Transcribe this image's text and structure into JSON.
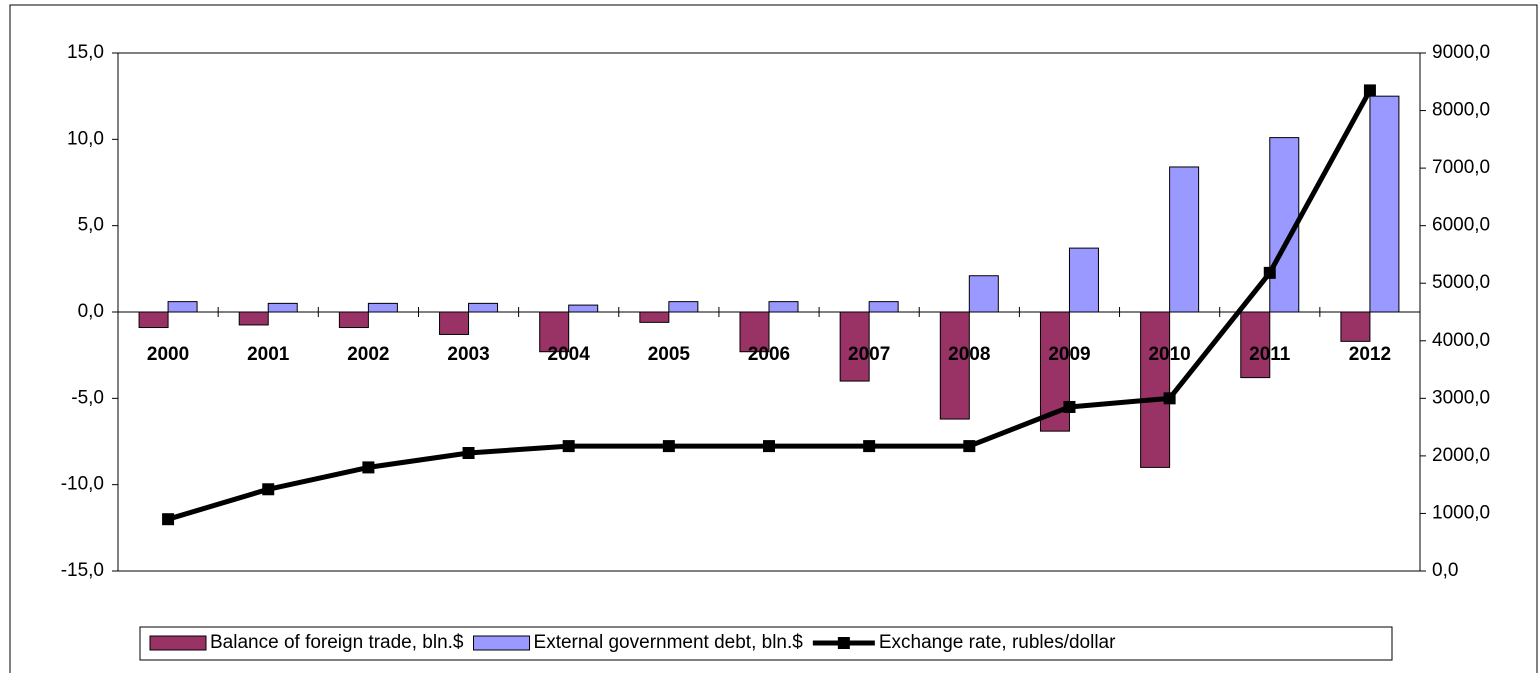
{
  "chart_data": {
    "type": "bar-line",
    "categories": [
      "2000",
      "2001",
      "2002",
      "2003",
      "2004",
      "2005",
      "2006",
      "2007",
      "2008",
      "2009",
      "2010",
      "2011",
      "2012"
    ],
    "series": [
      {
        "name": "Balance of foreign trade, bln.$",
        "type": "bar",
        "color": "#993366",
        "values": [
          -0.9,
          -0.75,
          -0.9,
          -1.3,
          -2.3,
          -0.6,
          -2.3,
          -4.0,
          -6.2,
          -6.9,
          -9.0,
          -3.8,
          -1.7
        ]
      },
      {
        "name": "External government debt, bln.$",
        "type": "bar",
        "color": "#9999ff",
        "values": [
          0.6,
          0.5,
          0.5,
          0.5,
          0.4,
          0.6,
          0.6,
          0.6,
          2.1,
          3.7,
          8.4,
          10.1,
          12.5
        ]
      },
      {
        "name": "Exchange rate, rubles/dollar",
        "type": "line",
        "color": "#000000",
        "axis": "y2",
        "values": [
          900,
          1420,
          1800,
          2050,
          2170,
          2170,
          2170,
          2170,
          2170,
          2850,
          3000,
          5180,
          8350
        ]
      }
    ],
    "ylim": [
      -15,
      15
    ],
    "yticks": [
      {
        "value": -15,
        "label": "-15,0"
      },
      {
        "value": -10,
        "label": "-10,0"
      },
      {
        "value": -5,
        "label": "-5,0"
      },
      {
        "value": 0,
        "label": "0,0"
      },
      {
        "value": 5,
        "label": "5,0"
      },
      {
        "value": 10,
        "label": "10,0"
      },
      {
        "value": 15,
        "label": "15,0"
      }
    ],
    "y2lim": [
      0,
      9000
    ],
    "y2ticks": [
      {
        "value": 0,
        "label": "0,0"
      },
      {
        "value": 1000,
        "label": "1000,0"
      },
      {
        "value": 2000,
        "label": "2000,0"
      },
      {
        "value": 3000,
        "label": "3000,0"
      },
      {
        "value": 4000,
        "label": "4000,0"
      },
      {
        "value": 5000,
        "label": "5000,0"
      },
      {
        "value": 6000,
        "label": "6000,0"
      },
      {
        "value": 7000,
        "label": "7000,0"
      },
      {
        "value": 8000,
        "label": "8000,0"
      },
      {
        "value": 9000,
        "label": "9000,0"
      }
    ],
    "legend": "bottom"
  }
}
